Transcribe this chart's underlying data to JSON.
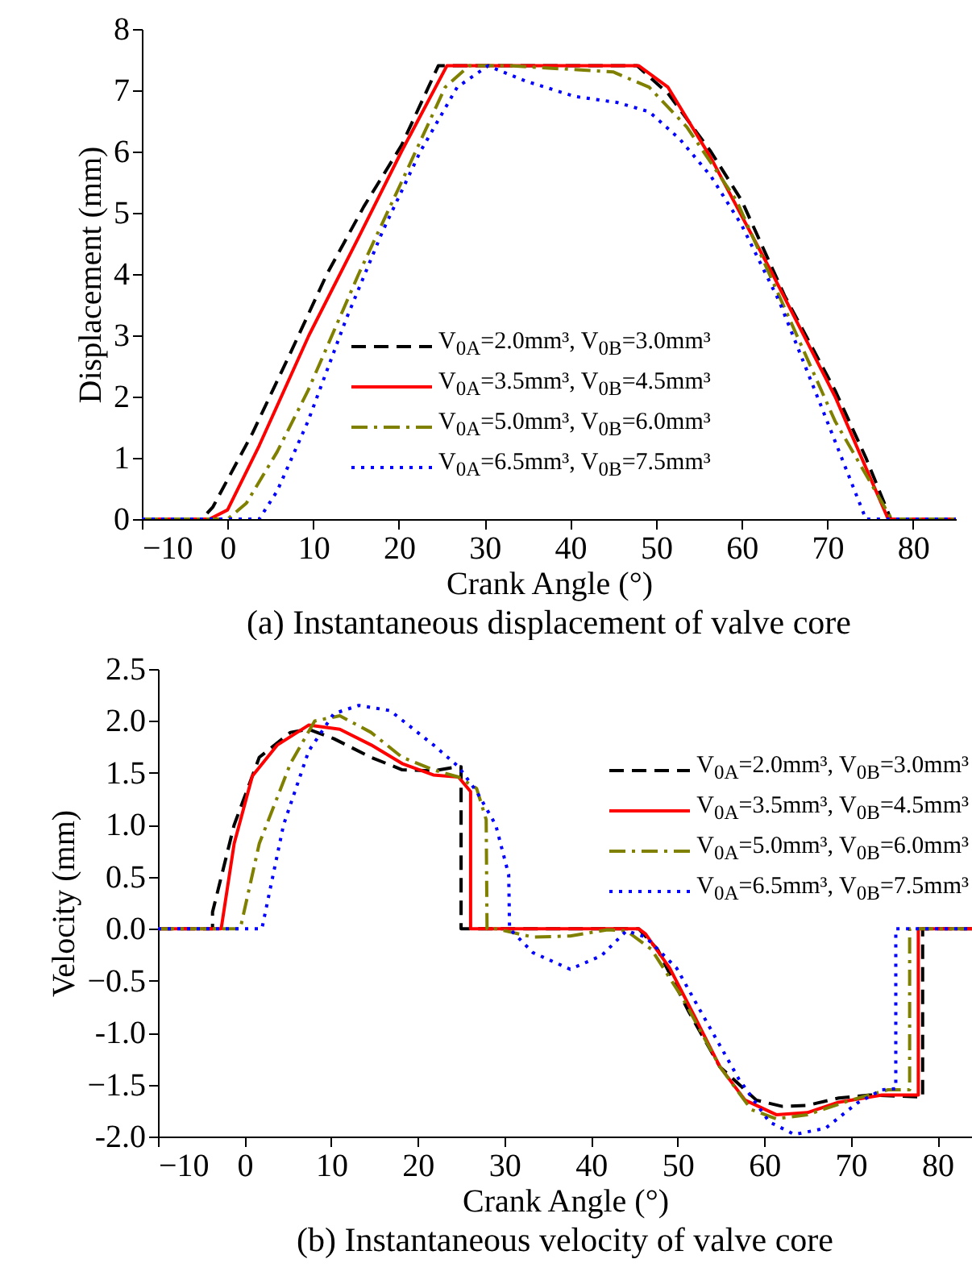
{
  "chart_data": [
    {
      "type": "line",
      "title": "(a) Instantaneous displacement of valve core",
      "xlabel": "Crank Angle (°)",
      "ylabel": "Displacement (mm)",
      "xlim": [
        -10,
        85
      ],
      "xticks": [
        -10,
        0,
        10,
        20,
        30,
        40,
        50,
        60,
        70,
        80
      ],
      "ylim": [
        0,
        8
      ],
      "yticks": [
        0,
        1,
        2,
        3,
        4,
        5,
        6,
        7,
        8
      ],
      "legend": "bottom right",
      "series": [
        {
          "name": "V$_{0A}$=2.0mm³, V$_{0B}$=3.0mm³",
          "color": "#000000",
          "line_style": "dashed",
          "x": [
            -10,
            -3,
            -1.7,
            2.9,
            7.3,
            11.6,
            15.9,
            20.3,
            24.6,
            47.8,
            51.4,
            56.4,
            60,
            65,
            70.9,
            74.5,
            77.4,
            85
          ],
          "values": [
            0,
            0,
            0.2,
            1.4,
            2.7,
            4.0,
            5.1,
            6.1,
            7.4,
            7.4,
            6.95,
            6.0,
            5.2,
            3.65,
            2.1,
            1.0,
            0,
            0
          ]
        },
        {
          "name": "V$_{0A}$=3.5mm³, V$_{0B}$=4.5mm³",
          "color": "#ff0000",
          "line_style": "solid",
          "x": [
            -10,
            -2.1,
            0,
            3.7,
            9.5,
            15.3,
            20.3,
            25.6,
            30,
            40,
            48,
            51.4,
            56.4,
            63.6,
            70.9,
            77.1,
            85
          ],
          "values": [
            0,
            0,
            0.15,
            1.2,
            3.0,
            4.6,
            6.0,
            7.4,
            7.4,
            7.4,
            7.4,
            7.05,
            5.9,
            4.0,
            2.0,
            0,
            0
          ]
        },
        {
          "name": "V$_{0A}$=5.0mm³, V$_{0B}$=6.0mm³",
          "color": "#808000",
          "line_style": "dashdot",
          "x": [
            -10,
            0,
            2.2,
            5.8,
            9.4,
            15.3,
            20.3,
            25.4,
            28.2,
            33,
            45,
            49.2,
            53.6,
            59.4,
            65,
            70.9,
            77.5,
            85
          ],
          "values": [
            0,
            0,
            0.26,
            1.1,
            2.1,
            4.0,
            5.5,
            7.05,
            7.4,
            7.4,
            7.3,
            7.05,
            6.4,
            5.2,
            3.45,
            1.6,
            0,
            0
          ]
        },
        {
          "name": "V$_{0A}$=6.5mm³, V$_{0B}$=7.5mm³",
          "color": "#0000ff",
          "line_style": "dotted",
          "x": [
            -10,
            3.7,
            5.8,
            9.4,
            13.8,
            18.1,
            22.5,
            26.8,
            30.4,
            34.8,
            40.5,
            45.5,
            49.2,
            52.8,
            56.4,
            60,
            64.4,
            69.4,
            74.5,
            85
          ],
          "values": [
            0,
            0,
            0.46,
            1.6,
            3.25,
            4.7,
            6.0,
            7.05,
            7.4,
            7.15,
            6.9,
            6.8,
            6.65,
            6.2,
            5.6,
            4.8,
            3.55,
            1.8,
            0,
            0
          ]
        }
      ]
    },
    {
      "type": "line",
      "title": "(b) Instantaneous velocity of valve core",
      "xlabel": "Crank Angle (°)",
      "ylabel": "Velocity (mm)",
      "xlim": [
        -10,
        84
      ],
      "xticks": [
        -10,
        0,
        10,
        20,
        30,
        40,
        50,
        60,
        70,
        80
      ],
      "ylim": [
        -2,
        2.5
      ],
      "yticks": [
        {
          "value": -2,
          "label": "-2.0"
        },
        -1.5,
        {
          "value": -1,
          "label": "-1.0"
        },
        -0.5,
        {
          "value": 0,
          "label": "0.0"
        },
        0.5,
        {
          "value": 1,
          "label": "1.0"
        },
        1.5,
        {
          "value": 2,
          "label": "2.0"
        },
        2.5
      ],
      "legend": "top right",
      "series": [
        {
          "name": "V$_{0A}$=2.0mm³, V$_{0B}$=3.0mm³",
          "color": "#000000",
          "line_style": "dashed",
          "x": [
            -10,
            -3.7,
            -3.7,
            -1.2,
            1.7,
            5.3,
            7.4,
            10.3,
            14.6,
            18.2,
            21.8,
            24.7,
            25,
            25,
            45.5,
            47.7,
            51.3,
            54.9,
            59.1,
            62.1,
            65,
            68.6,
            72.2,
            78.3,
            78.3,
            84
          ],
          "values": [
            0,
            0,
            0.16,
            1.0,
            1.65,
            1.89,
            1.92,
            1.83,
            1.65,
            1.53,
            1.52,
            1.56,
            1.56,
            0,
            0,
            -0.2,
            -0.8,
            -1.33,
            -1.65,
            -1.71,
            -1.7,
            -1.63,
            -1.6,
            -1.62,
            0,
            0
          ]
        },
        {
          "name": "V$_{0A}$=3.5mm³, V$_{0B}$=4.5mm³",
          "color": "#ff0000",
          "line_style": "solid",
          "x": [
            -10,
            -2.7,
            -1.2,
            0.9,
            3.8,
            7.4,
            11,
            14.6,
            18.2,
            21.8,
            24.7,
            26.1,
            26.1,
            45.5,
            46.3,
            49.1,
            52,
            54.9,
            57.8,
            61.4,
            65,
            68.6,
            73.6,
            77.8,
            77.8,
            84
          ],
          "values": [
            0,
            0,
            0.82,
            1.47,
            1.77,
            1.96,
            1.92,
            1.77,
            1.59,
            1.48,
            1.46,
            1.32,
            0,
            0,
            -0.05,
            -0.38,
            -0.85,
            -1.33,
            -1.65,
            -1.79,
            -1.77,
            -1.67,
            -1.6,
            -1.6,
            0,
            0
          ]
        },
        {
          "name": "V$_{0A}$=5.0mm³, V$_{0B}$=6.0mm³",
          "color": "#808000",
          "line_style": "dashdot",
          "x": [
            -10,
            -0.5,
            1.7,
            5.3,
            8.1,
            11,
            14.6,
            18.2,
            21.8,
            24.7,
            26.8,
            27.9,
            28,
            29,
            33.3,
            37.6,
            41.9,
            44.1,
            47,
            50.6,
            54.9,
            58.5,
            61.4,
            65,
            70,
            74.3,
            76.8,
            76.8,
            84
          ],
          "values": [
            0,
            0,
            0.82,
            1.59,
            2.0,
            2.05,
            1.89,
            1.65,
            1.53,
            1.46,
            1.35,
            1.05,
            0,
            0,
            -0.08,
            -0.07,
            -0.01,
            -0.02,
            -0.2,
            -0.67,
            -1.33,
            -1.74,
            -1.83,
            -1.79,
            -1.65,
            -1.55,
            -1.55,
            0,
            0
          ]
        },
        {
          "name": "V$_{0A}$=6.5mm³, V$_{0B}$=7.5mm³",
          "color": "#0000ff",
          "line_style": "dotted",
          "x": [
            -10,
            2.0,
            4.5,
            7.4,
            10.3,
            13.2,
            16.8,
            21.8,
            24.7,
            26.8,
            29,
            30.5,
            30.6,
            33.3,
            37.6,
            41.2,
            44.1,
            46.3,
            49.9,
            52.7,
            57.1,
            60.6,
            63.5,
            67.1,
            70.7,
            73.6,
            75.2,
            75.2,
            84
          ],
          "values": [
            0,
            0,
            1.0,
            1.71,
            2.07,
            2.15,
            2.1,
            1.77,
            1.56,
            1.32,
            1.0,
            0.52,
            0,
            -0.23,
            -0.39,
            -0.26,
            -0.02,
            -0.08,
            -0.38,
            -0.8,
            -1.45,
            -1.86,
            -1.98,
            -1.92,
            -1.68,
            -1.55,
            -1.54,
            0,
            0
          ]
        }
      ]
    }
  ]
}
